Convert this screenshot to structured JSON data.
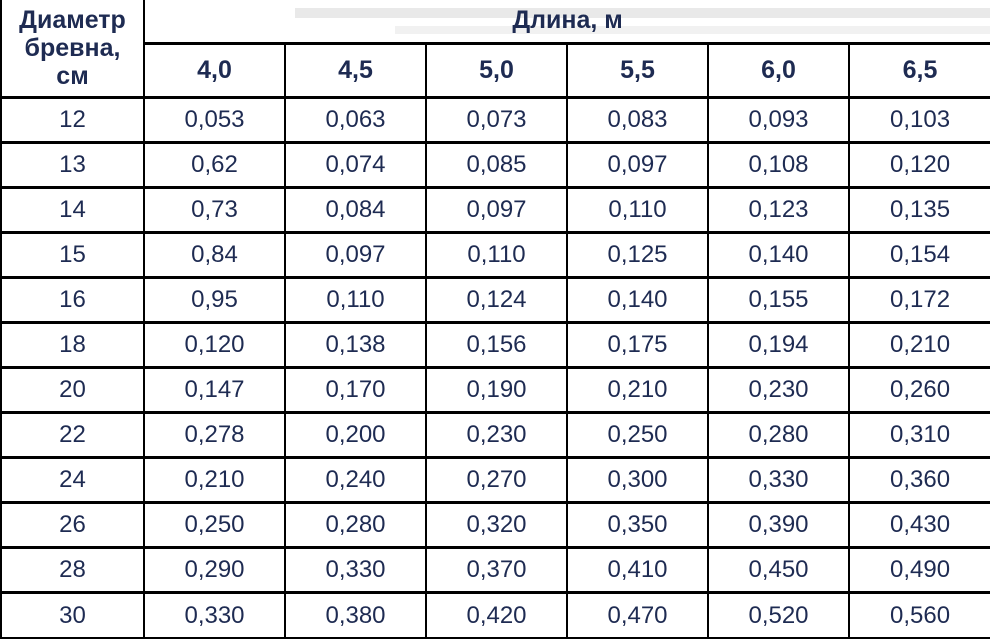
{
  "table": {
    "diameter_header": "Диаметр бревна, см",
    "group_header": "Длина, м",
    "length_columns": [
      "4,0",
      "4,5",
      "5,0",
      "5,5",
      "6,0",
      "6,5"
    ],
    "rows": [
      {
        "diameter": "12",
        "values": [
          "0,053",
          "0,063",
          "0,073",
          "0,083",
          "0,093",
          "0,103"
        ]
      },
      {
        "diameter": "13",
        "values": [
          "0,62",
          "0,074",
          "0,085",
          "0,097",
          "0,108",
          "0,120"
        ]
      },
      {
        "diameter": "14",
        "values": [
          "0,73",
          "0,084",
          "0,097",
          "0,110",
          "0,123",
          "0,135"
        ]
      },
      {
        "diameter": "15",
        "values": [
          "0,84",
          "0,097",
          "0,110",
          "0,125",
          "0,140",
          "0,154"
        ]
      },
      {
        "diameter": "16",
        "values": [
          "0,95",
          "0,110",
          "0,124",
          "0,140",
          "0,155",
          "0,172"
        ]
      },
      {
        "diameter": "18",
        "values": [
          "0,120",
          "0,138",
          "0,156",
          "0,175",
          "0,194",
          "0,210"
        ]
      },
      {
        "diameter": "20",
        "values": [
          "0,147",
          "0,170",
          "0,190",
          "0,210",
          "0,230",
          "0,260"
        ]
      },
      {
        "diameter": "22",
        "values": [
          "0,278",
          "0,200",
          "0,230",
          "0,250",
          "0,280",
          "0,310"
        ]
      },
      {
        "diameter": "24",
        "values": [
          "0,210",
          "0,240",
          "0,270",
          "0,300",
          "0,330",
          "0,360"
        ]
      },
      {
        "diameter": "26",
        "values": [
          "0,250",
          "0,280",
          "0,320",
          "0,350",
          "0,390",
          "0,430"
        ]
      },
      {
        "diameter": "28",
        "values": [
          "0,290",
          "0,330",
          "0,370",
          "0,410",
          "0,450",
          "0,490"
        ]
      },
      {
        "diameter": "30",
        "values": [
          "0,330",
          "0,380",
          "0,420",
          "0,470",
          "0,520",
          "0,560"
        ]
      }
    ],
    "colors": {
      "text": "#1e2b52",
      "border": "#000000",
      "background": "#ffffff"
    }
  }
}
